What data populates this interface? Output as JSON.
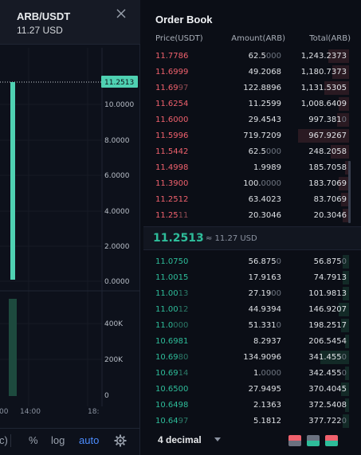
{
  "chart_panel": {
    "pair": "ARB/USDT",
    "price_usd": "11.27 USD",
    "price_tag": "11.2513",
    "y_ticks": [
      "10.0000",
      "8.0000",
      "6.0000",
      "4.0000",
      "2.0000",
      "0.0000"
    ],
    "volume_ticks": [
      "400K",
      "200K",
      "0"
    ],
    "time_ticks": [
      "00",
      "14:00",
      "18:"
    ],
    "toolbar": {
      "left_partial": "c)",
      "percent": "%",
      "log": "log",
      "auto": "auto"
    },
    "colors": {
      "up": "#4fd1b2",
      "volume": "#1d4a3e",
      "accent": "#4c8dff"
    }
  },
  "order_book": {
    "title": "Order Book",
    "columns": {
      "price": "Price(USDT)",
      "amount": "Amount(ARB)",
      "total": "Total(ARB)"
    },
    "asks": [
      {
        "price_main": "11.7786",
        "price_dim": "",
        "amount_main": "62.5",
        "amount_dim": "000",
        "total": "1,243.2373",
        "depth": 0.1
      },
      {
        "price_main": "11.6999",
        "price_dim": "",
        "amount_main": "49.2068",
        "amount_dim": "",
        "total": "1,180.7373",
        "depth": 0.08
      },
      {
        "price_main": "11.69",
        "price_dim": "97",
        "amount_main": "122.8896",
        "amount_dim": "",
        "total": "1,131.5305",
        "depth": 0.12
      },
      {
        "price_main": "11.6254",
        "price_dim": "",
        "amount_main": "11.2599",
        "amount_dim": "",
        "total": "1,008.6409",
        "depth": 0.05
      },
      {
        "price_main": "11.6000",
        "price_dim": "",
        "amount_main": "29.4543",
        "amount_dim": "",
        "total": "997.381",
        "total_dim": "0",
        "depth": 0.06
      },
      {
        "price_main": "11.5996",
        "price_dim": "",
        "amount_main": "719.7209",
        "amount_dim": "",
        "total": "967.9267",
        "depth": 0.25
      },
      {
        "price_main": "11.5442",
        "price_dim": "",
        "amount_main": "62.5",
        "amount_dim": "000",
        "total": "248.2058",
        "depth": 0.09
      },
      {
        "price_main": "11.4998",
        "price_dim": "",
        "amount_main": "1.9989",
        "amount_dim": "",
        "total": "185.7058",
        "depth": 0.02
      },
      {
        "price_main": "11.3900",
        "price_dim": "",
        "amount_main": "100.",
        "amount_dim": "0000",
        "total": "183.7069",
        "depth": 0.05
      },
      {
        "price_main": "11.2512",
        "price_dim": "",
        "amount_main": "63.4023",
        "amount_dim": "",
        "total": "83.7069",
        "depth": 0.04
      },
      {
        "price_main": "11.25",
        "price_dim": "11",
        "amount_main": "20.3046",
        "amount_dim": "",
        "total": "20.3046",
        "depth": 0.03
      }
    ],
    "mid": {
      "price": "11.2513",
      "arrow": "↑",
      "usd": "≈ 11.27 USD"
    },
    "bids": [
      {
        "price_main": "11.0750",
        "price_dim": "",
        "amount_main": "56.875",
        "amount_dim": "0",
        "total": "56.875",
        "total_dim": "0",
        "depth": 0.03
      },
      {
        "price_main": "11.0015",
        "price_dim": "",
        "amount_main": "17.9163",
        "amount_dim": "",
        "total": "74.7913",
        "depth": 0.03
      },
      {
        "price_main": "11.00",
        "price_dim": "13",
        "amount_main": "27.19",
        "amount_dim": "00",
        "total": "101.9813",
        "depth": 0.03
      },
      {
        "price_main": "11.00",
        "price_dim": "12",
        "amount_main": "44.9394",
        "amount_dim": "",
        "total": "146.9207",
        "depth": 0.05
      },
      {
        "price_main": "11.0",
        "price_dim": "000",
        "amount_main": "51.331",
        "amount_dim": "0",
        "total": "198.2517",
        "depth": 0.04
      },
      {
        "price_main": "10.6981",
        "price_dim": "",
        "amount_main": "8.2937",
        "amount_dim": "",
        "total": "206.5454",
        "depth": 0.02
      },
      {
        "price_main": "10.69",
        "price_dim": "80",
        "amount_main": "134.9096",
        "amount_dim": "",
        "total": "341.455",
        "total_dim": "0",
        "depth": 0.14
      },
      {
        "price_main": "10.69",
        "price_dim": "14",
        "amount_main": "1.",
        "amount_dim": "0000",
        "total": "342.455",
        "total_dim": "0",
        "depth": 0.02
      },
      {
        "price_main": "10.6500",
        "price_dim": "",
        "amount_main": "27.9495",
        "amount_dim": "",
        "total": "370.4045",
        "depth": 0.04
      },
      {
        "price_main": "10.6498",
        "price_dim": "",
        "amount_main": "2.1363",
        "amount_dim": "",
        "total": "372.5408",
        "depth": 0.02
      },
      {
        "price_main": "10.64",
        "price_dim": "97",
        "amount_main": "5.1812",
        "amount_dim": "",
        "total": "377.722",
        "total_dim": "0",
        "depth": 0.03
      }
    ],
    "footer": {
      "decimal": "4 decimal"
    },
    "colors": {
      "ask": "#f0616d",
      "bid": "#2ebd9a"
    }
  }
}
